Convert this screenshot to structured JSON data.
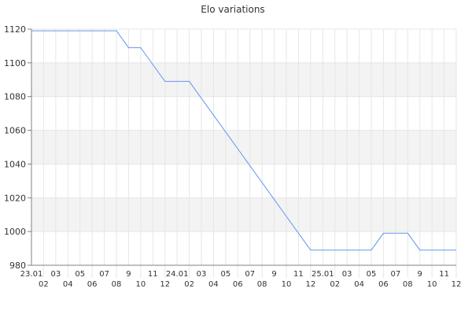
{
  "chart_data": {
    "type": "line",
    "title": "Elo variations",
    "xlabel": "",
    "ylabel": "",
    "ylim": [
      980,
      1120
    ],
    "yticks": [
      980,
      1000,
      1020,
      1040,
      1060,
      1080,
      1100,
      1120
    ],
    "grid": true,
    "categories": [
      "23.01",
      "02",
      "03",
      "04",
      "05",
      "06",
      "07",
      "08",
      "9",
      "10",
      "11",
      "12",
      "24.01",
      "02",
      "03",
      "04",
      "05",
      "06",
      "07",
      "08",
      "9",
      "10",
      "11",
      "12",
      "25.01",
      "02",
      "03",
      "04",
      "05",
      "06",
      "07",
      "08",
      "9",
      "10",
      "11",
      "12"
    ],
    "values": [
      1119,
      1119,
      1119,
      1119,
      1119,
      1119,
      1119,
      1119,
      1109,
      1109,
      1099,
      1089,
      1089,
      1089,
      1079,
      1069,
      1059,
      1049,
      1039,
      1029,
      1019,
      1009,
      999,
      989,
      989,
      989,
      989,
      989,
      989,
      999,
      999,
      999,
      989,
      989,
      989,
      989
    ],
    "colors": {
      "line": "#6495ed",
      "band": "#f3f3f3",
      "grid": "#e6e6e6",
      "axis": "#808080"
    }
  }
}
